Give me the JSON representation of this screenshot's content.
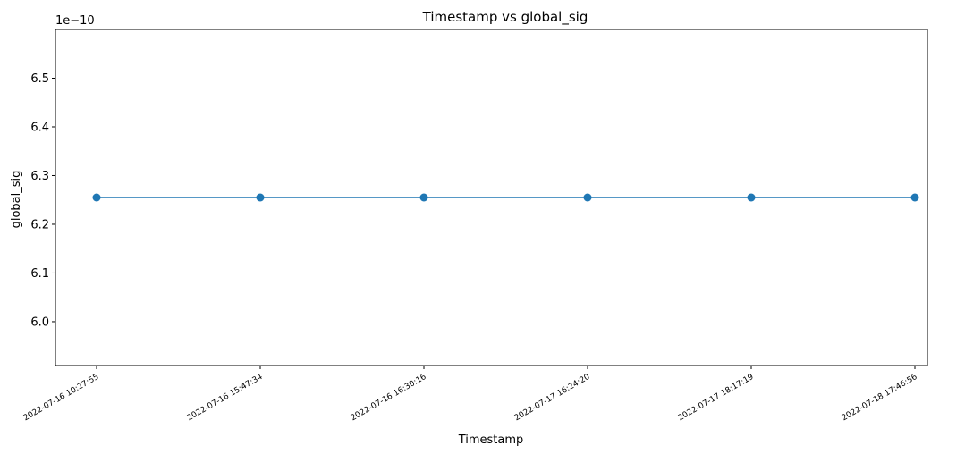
{
  "chart_data": {
    "type": "line",
    "title": "Timestamp vs global_sig",
    "xlabel": "Timestamp",
    "ylabel": "global_sig",
    "offset_label": "1e−10",
    "x": [
      "2022-07-16 10:27:55",
      "2022-07-16 15:47:34",
      "2022-07-16 16:30:16",
      "2022-07-17 16:24:20",
      "2022-07-17 18:17:19",
      "2022-07-18 17:46:56"
    ],
    "series": [
      {
        "values": [
          6.255e-10,
          6.255e-10,
          6.255e-10,
          6.255e-10,
          6.255e-10,
          6.255e-10
        ]
      }
    ],
    "ylim": [
      5.91e-10,
      6.6e-10
    ],
    "yticks": [
      6e-10,
      6.1e-10,
      6.2e-10,
      6.3e-10,
      6.4e-10,
      6.5e-10
    ],
    "ytick_labels": [
      "6.0",
      "6.1",
      "6.2",
      "6.3",
      "6.4",
      "6.5"
    ],
    "grid": false,
    "legend": "none",
    "line_color": "#1f77b4",
    "marker": "circle"
  }
}
